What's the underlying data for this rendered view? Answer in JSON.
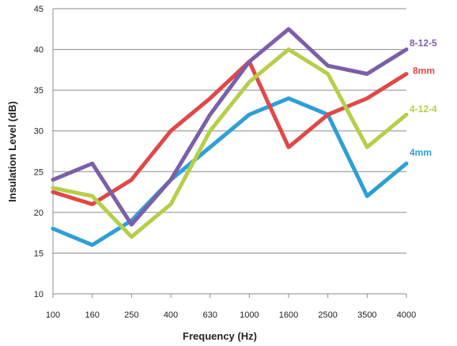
{
  "chart_data": {
    "type": "line",
    "title": "",
    "xlabel": "Frequency (Hz)",
    "ylabel": "Insulation Level (dB)",
    "categories": [
      "100",
      "160",
      "250",
      "400",
      "630",
      "1000",
      "1600",
      "2500",
      "3500",
      "4000"
    ],
    "ylim": [
      10,
      45
    ],
    "yticks": [
      10,
      15,
      20,
      25,
      30,
      35,
      40,
      45
    ],
    "grid": "horizontal",
    "legend": "direct labels at right end of each line",
    "series": [
      {
        "name": "4mm",
        "color": "#2e9fd6",
        "values": [
          18,
          16,
          19,
          24,
          28,
          32,
          34,
          32,
          22,
          26
        ]
      },
      {
        "name": "8mm",
        "color": "#e04848",
        "values": [
          22.5,
          21,
          24,
          30,
          34,
          38.5,
          28,
          32,
          34,
          37
        ]
      },
      {
        "name": "4-12-4",
        "color": "#b5cf49",
        "values": [
          23,
          22,
          17,
          21,
          30,
          36,
          40,
          37,
          28,
          32
        ]
      },
      {
        "name": "8-12-5",
        "color": "#7b5fa8",
        "values": [
          24,
          26,
          18.5,
          24,
          32,
          38.5,
          42.5,
          38,
          37,
          40
        ]
      }
    ]
  }
}
